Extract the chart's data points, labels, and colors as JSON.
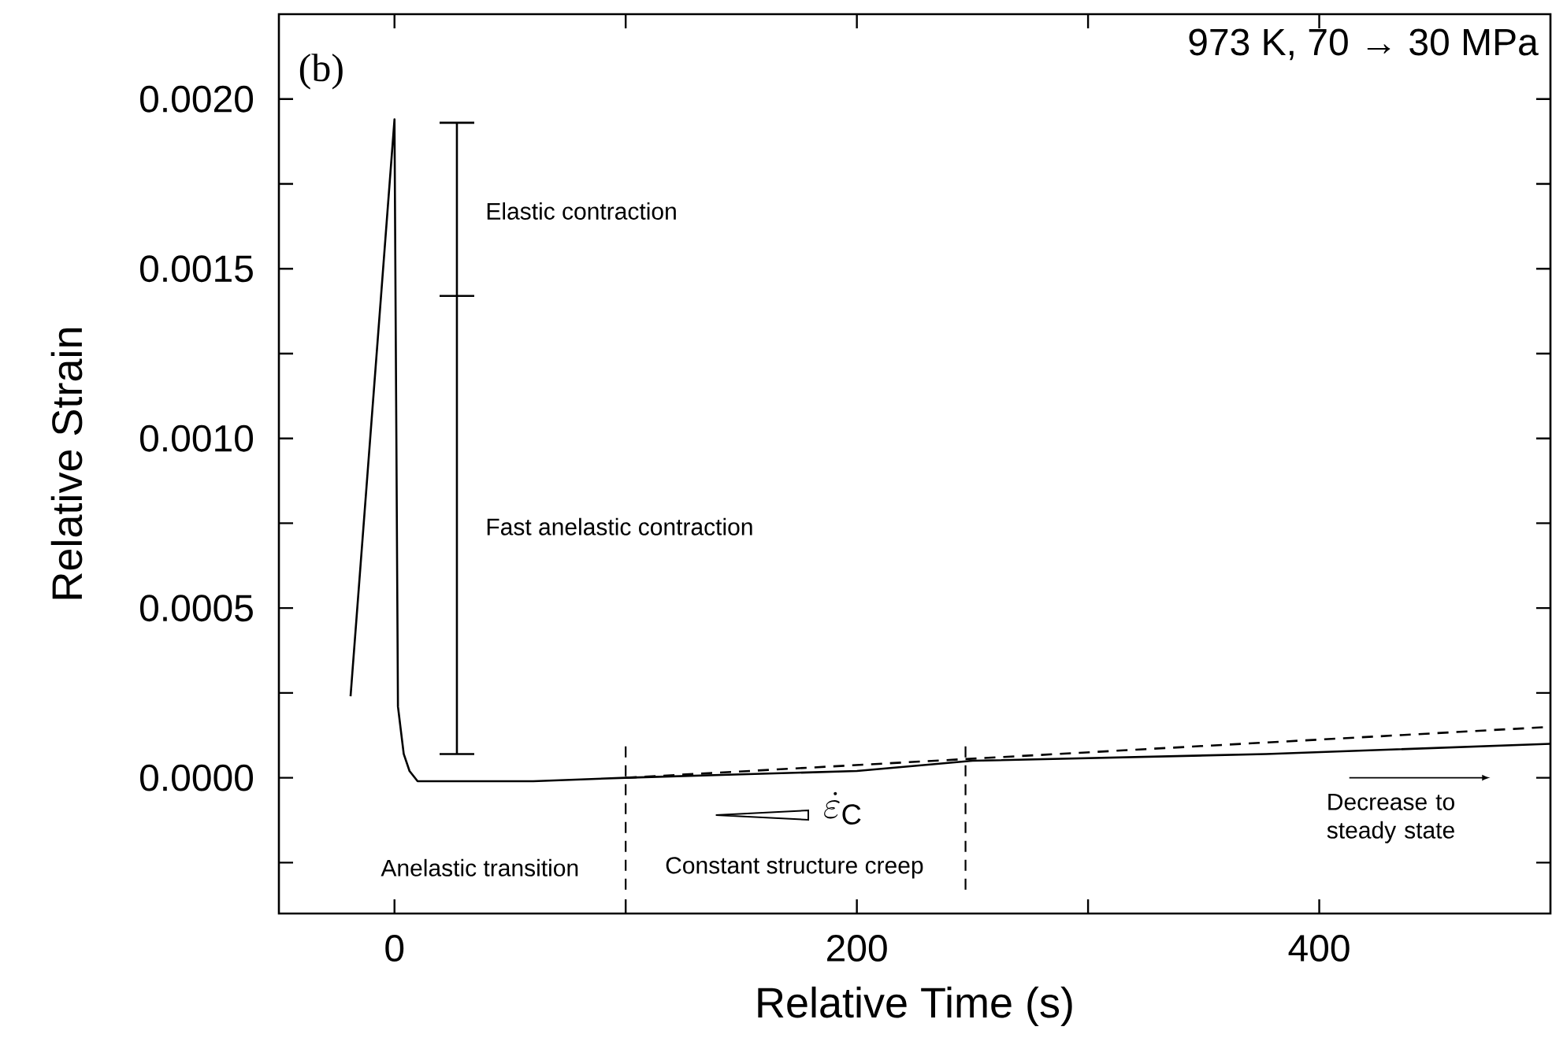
{
  "chart_data": {
    "type": "line",
    "title": "973 K, 70 → 30 MPa",
    "xlabel": "Relative Time (s)",
    "ylabel": "Relative Strain",
    "xlim": [
      -50,
      500
    ],
    "ylim": [
      -0.0004,
      0.00225
    ],
    "xticks": [
      0,
      {
        "value": 100,
        "label": null
      },
      200,
      {
        "value": 300,
        "label": null
      },
      400
    ],
    "yticks": [
      {
        "value": -0.00025,
        "label": null
      },
      {
        "value": 0,
        "label": "0.0000"
      },
      {
        "value": 0.00025,
        "label": null
      },
      {
        "value": 0.0005,
        "label": "0.0005"
      },
      {
        "value": 0.00075,
        "label": null
      },
      {
        "value": 0.001,
        "label": "0.0010"
      },
      {
        "value": 0.00125,
        "label": null
      },
      {
        "value": 0.0015,
        "label": "0.0015"
      },
      {
        "value": 0.00175,
        "label": null
      },
      {
        "value": 0.002,
        "label": "0.0020"
      }
    ],
    "series": [
      {
        "type": "line",
        "color": "#000000",
        "line_style": "solid",
        "x": [
          -19,
          0,
          1.5,
          4,
          6.5,
          10,
          20,
          60,
          100,
          150,
          200,
          250,
          377,
          500
        ],
        "values": [
          0.00024,
          0.00194,
          0.00021,
          7e-05,
          2e-05,
          -1e-05,
          -1e-05,
          -1e-05,
          0,
          1e-05,
          2e-05,
          5e-05,
          7e-05,
          0.0001
        ]
      },
      {
        "type": "line",
        "color": "#000000",
        "line_style": "dashed",
        "x": [
          100,
          500
        ],
        "values": [
          0,
          0.00015
        ]
      },
      {
        "type": "line",
        "color": "#000000",
        "line_style": "solid",
        "x": [
          27,
          27
        ],
        "values": [
          7e-05,
          0.00193
        ]
      }
    ],
    "ref_lines": [
      {
        "axis": "x",
        "value": 100,
        "line_style": "dashed"
      },
      {
        "axis": "x",
        "value": 247,
        "line_style": "dashed"
      }
    ],
    "annotations": [
      "(b)",
      "Elastic contraction",
      "Fast anelastic contraction",
      "Anelastic transition",
      "Constant structure creep",
      "\\dot{\\varepsilon}_{\\mathrm{C}}",
      "Decrease to steady state"
    ],
    "grid": false
  }
}
